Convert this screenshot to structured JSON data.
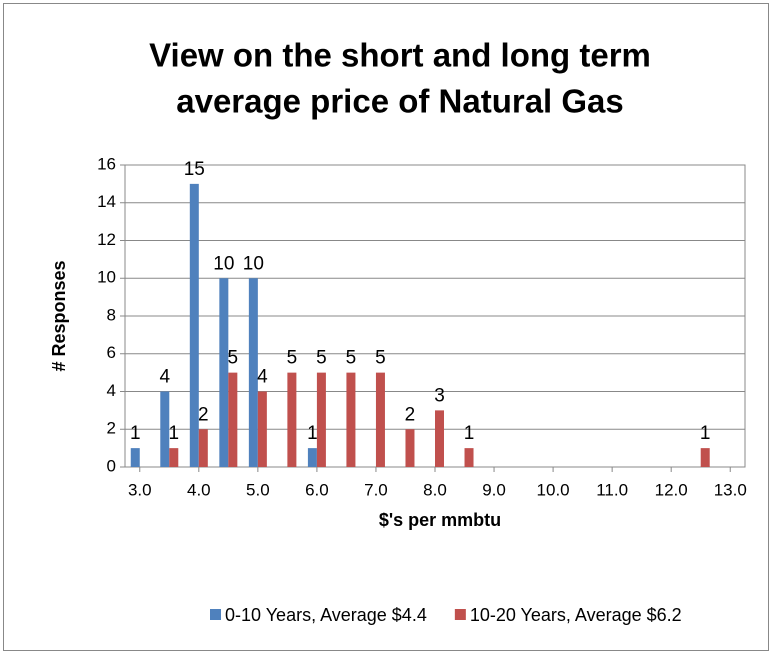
{
  "chart_data": {
    "type": "bar",
    "title": [
      "View on the short and long term",
      "average price of Natural Gas"
    ],
    "x_label": "$'s per mmbtu",
    "y_label": "# Responses",
    "x": [
      3.0,
      3.5,
      4.0,
      4.5,
      5.0,
      5.5,
      6.0,
      6.5,
      7.0,
      7.5,
      8.0,
      8.5,
      12.5
    ],
    "series": [
      {
        "name": "0-10 Years, Average $4.4",
        "color": "#4f81bd",
        "values": [
          1,
          4,
          15,
          10,
          10,
          null,
          1,
          null,
          null,
          null,
          null,
          null,
          null
        ]
      },
      {
        "name": "10-20 Years, Average $6.2",
        "color": "#c0504d",
        "values": [
          null,
          1,
          2,
          5,
          4,
          5,
          5,
          5,
          5,
          2,
          3,
          1,
          1
        ]
      }
    ],
    "xlim": [
      2.75,
      13.25
    ],
    "xticks": [
      {
        "value": 3,
        "label": "3.0"
      },
      {
        "value": 4,
        "label": "4.0"
      },
      {
        "value": 5,
        "label": "5.0"
      },
      {
        "value": 6,
        "label": "6.0"
      },
      {
        "value": 7,
        "label": "7.0"
      },
      {
        "value": 8,
        "label": "8.0"
      },
      {
        "value": 9,
        "label": "9.0"
      },
      {
        "value": 10,
        "label": "10.0"
      },
      {
        "value": 11,
        "label": "11.0"
      },
      {
        "value": 12,
        "label": "12.0"
      },
      {
        "value": 13,
        "label": "13.0"
      }
    ],
    "ylim": [
      0,
      16
    ],
    "yticks": [
      0,
      2,
      4,
      6,
      8,
      10,
      12,
      14,
      16
    ],
    "grid": true,
    "legend": "bottom"
  }
}
